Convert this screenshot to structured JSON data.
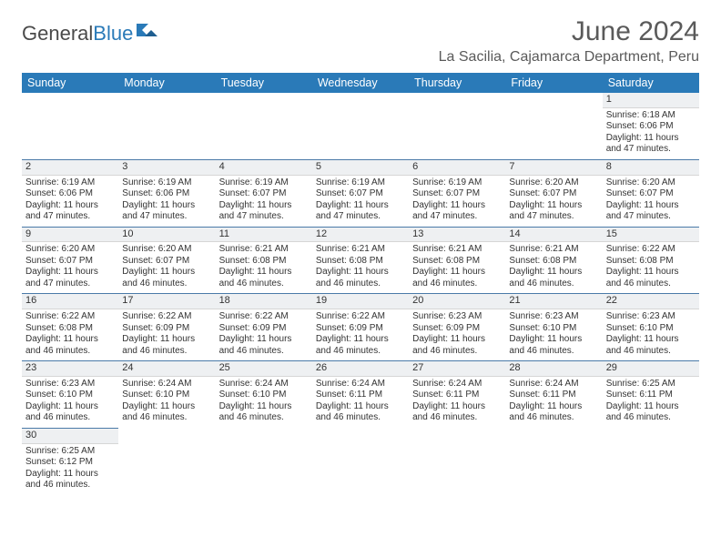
{
  "logo": {
    "text1": "General",
    "text2": "Blue"
  },
  "title": "June 2024",
  "location": "La Sacilia, Cajamarca Department, Peru",
  "colors": {
    "header_bg": "#2a7ab8",
    "header_fg": "#ffffff",
    "rule": "#4a7aa8",
    "daynum_bg": "#eef0f2"
  },
  "day_headers": [
    "Sunday",
    "Monday",
    "Tuesday",
    "Wednesday",
    "Thursday",
    "Friday",
    "Saturday"
  ],
  "weeks": [
    [
      {
        "n": "",
        "empty": true
      },
      {
        "n": "",
        "empty": true
      },
      {
        "n": "",
        "empty": true
      },
      {
        "n": "",
        "empty": true
      },
      {
        "n": "",
        "empty": true
      },
      {
        "n": "",
        "empty": true
      },
      {
        "n": "1",
        "sr": "Sunrise: 6:18 AM",
        "ss": "Sunset: 6:06 PM",
        "dl1": "Daylight: 11 hours",
        "dl2": "and 47 minutes."
      }
    ],
    [
      {
        "n": "2",
        "sr": "Sunrise: 6:19 AM",
        "ss": "Sunset: 6:06 PM",
        "dl1": "Daylight: 11 hours",
        "dl2": "and 47 minutes."
      },
      {
        "n": "3",
        "sr": "Sunrise: 6:19 AM",
        "ss": "Sunset: 6:06 PM",
        "dl1": "Daylight: 11 hours",
        "dl2": "and 47 minutes."
      },
      {
        "n": "4",
        "sr": "Sunrise: 6:19 AM",
        "ss": "Sunset: 6:07 PM",
        "dl1": "Daylight: 11 hours",
        "dl2": "and 47 minutes."
      },
      {
        "n": "5",
        "sr": "Sunrise: 6:19 AM",
        "ss": "Sunset: 6:07 PM",
        "dl1": "Daylight: 11 hours",
        "dl2": "and 47 minutes."
      },
      {
        "n": "6",
        "sr": "Sunrise: 6:19 AM",
        "ss": "Sunset: 6:07 PM",
        "dl1": "Daylight: 11 hours",
        "dl2": "and 47 minutes."
      },
      {
        "n": "7",
        "sr": "Sunrise: 6:20 AM",
        "ss": "Sunset: 6:07 PM",
        "dl1": "Daylight: 11 hours",
        "dl2": "and 47 minutes."
      },
      {
        "n": "8",
        "sr": "Sunrise: 6:20 AM",
        "ss": "Sunset: 6:07 PM",
        "dl1": "Daylight: 11 hours",
        "dl2": "and 47 minutes."
      }
    ],
    [
      {
        "n": "9",
        "sr": "Sunrise: 6:20 AM",
        "ss": "Sunset: 6:07 PM",
        "dl1": "Daylight: 11 hours",
        "dl2": "and 47 minutes."
      },
      {
        "n": "10",
        "sr": "Sunrise: 6:20 AM",
        "ss": "Sunset: 6:07 PM",
        "dl1": "Daylight: 11 hours",
        "dl2": "and 46 minutes."
      },
      {
        "n": "11",
        "sr": "Sunrise: 6:21 AM",
        "ss": "Sunset: 6:08 PM",
        "dl1": "Daylight: 11 hours",
        "dl2": "and 46 minutes."
      },
      {
        "n": "12",
        "sr": "Sunrise: 6:21 AM",
        "ss": "Sunset: 6:08 PM",
        "dl1": "Daylight: 11 hours",
        "dl2": "and 46 minutes."
      },
      {
        "n": "13",
        "sr": "Sunrise: 6:21 AM",
        "ss": "Sunset: 6:08 PM",
        "dl1": "Daylight: 11 hours",
        "dl2": "and 46 minutes."
      },
      {
        "n": "14",
        "sr": "Sunrise: 6:21 AM",
        "ss": "Sunset: 6:08 PM",
        "dl1": "Daylight: 11 hours",
        "dl2": "and 46 minutes."
      },
      {
        "n": "15",
        "sr": "Sunrise: 6:22 AM",
        "ss": "Sunset: 6:08 PM",
        "dl1": "Daylight: 11 hours",
        "dl2": "and 46 minutes."
      }
    ],
    [
      {
        "n": "16",
        "sr": "Sunrise: 6:22 AM",
        "ss": "Sunset: 6:08 PM",
        "dl1": "Daylight: 11 hours",
        "dl2": "and 46 minutes."
      },
      {
        "n": "17",
        "sr": "Sunrise: 6:22 AM",
        "ss": "Sunset: 6:09 PM",
        "dl1": "Daylight: 11 hours",
        "dl2": "and 46 minutes."
      },
      {
        "n": "18",
        "sr": "Sunrise: 6:22 AM",
        "ss": "Sunset: 6:09 PM",
        "dl1": "Daylight: 11 hours",
        "dl2": "and 46 minutes."
      },
      {
        "n": "19",
        "sr": "Sunrise: 6:22 AM",
        "ss": "Sunset: 6:09 PM",
        "dl1": "Daylight: 11 hours",
        "dl2": "and 46 minutes."
      },
      {
        "n": "20",
        "sr": "Sunrise: 6:23 AM",
        "ss": "Sunset: 6:09 PM",
        "dl1": "Daylight: 11 hours",
        "dl2": "and 46 minutes."
      },
      {
        "n": "21",
        "sr": "Sunrise: 6:23 AM",
        "ss": "Sunset: 6:10 PM",
        "dl1": "Daylight: 11 hours",
        "dl2": "and 46 minutes."
      },
      {
        "n": "22",
        "sr": "Sunrise: 6:23 AM",
        "ss": "Sunset: 6:10 PM",
        "dl1": "Daylight: 11 hours",
        "dl2": "and 46 minutes."
      }
    ],
    [
      {
        "n": "23",
        "sr": "Sunrise: 6:23 AM",
        "ss": "Sunset: 6:10 PM",
        "dl1": "Daylight: 11 hours",
        "dl2": "and 46 minutes."
      },
      {
        "n": "24",
        "sr": "Sunrise: 6:24 AM",
        "ss": "Sunset: 6:10 PM",
        "dl1": "Daylight: 11 hours",
        "dl2": "and 46 minutes."
      },
      {
        "n": "25",
        "sr": "Sunrise: 6:24 AM",
        "ss": "Sunset: 6:10 PM",
        "dl1": "Daylight: 11 hours",
        "dl2": "and 46 minutes."
      },
      {
        "n": "26",
        "sr": "Sunrise: 6:24 AM",
        "ss": "Sunset: 6:11 PM",
        "dl1": "Daylight: 11 hours",
        "dl2": "and 46 minutes."
      },
      {
        "n": "27",
        "sr": "Sunrise: 6:24 AM",
        "ss": "Sunset: 6:11 PM",
        "dl1": "Daylight: 11 hours",
        "dl2": "and 46 minutes."
      },
      {
        "n": "28",
        "sr": "Sunrise: 6:24 AM",
        "ss": "Sunset: 6:11 PM",
        "dl1": "Daylight: 11 hours",
        "dl2": "and 46 minutes."
      },
      {
        "n": "29",
        "sr": "Sunrise: 6:25 AM",
        "ss": "Sunset: 6:11 PM",
        "dl1": "Daylight: 11 hours",
        "dl2": "and 46 minutes."
      }
    ],
    [
      {
        "n": "30",
        "sr": "Sunrise: 6:25 AM",
        "ss": "Sunset: 6:12 PM",
        "dl1": "Daylight: 11 hours",
        "dl2": "and 46 minutes."
      },
      {
        "n": "",
        "empty": true
      },
      {
        "n": "",
        "empty": true
      },
      {
        "n": "",
        "empty": true
      },
      {
        "n": "",
        "empty": true
      },
      {
        "n": "",
        "empty": true
      },
      {
        "n": "",
        "empty": true
      }
    ]
  ]
}
